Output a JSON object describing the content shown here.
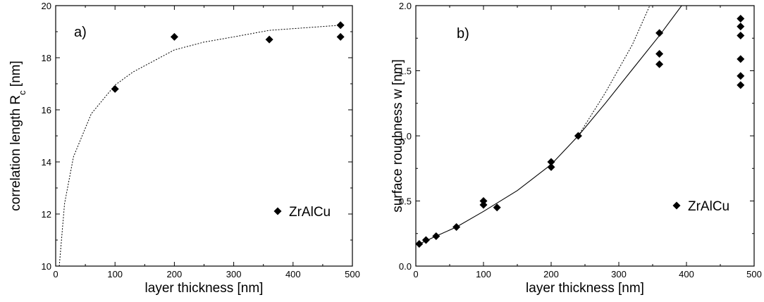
{
  "chart_data": [
    {
      "type": "scatter",
      "panel_label": "a)",
      "xlabel": "layer thickness [nm]",
      "ylabel": {
        "text": "correlation length R",
        "subscript": "c",
        "unit": " [nm]"
      },
      "xlim": [
        0,
        500
      ],
      "ylim": [
        10,
        20
      ],
      "xticks": [
        0,
        100,
        200,
        300,
        400,
        500
      ],
      "yticks": [
        10,
        12,
        14,
        16,
        18,
        20
      ],
      "grid": false,
      "legend": {
        "position": "bottom-right",
        "entries": [
          "ZrAlCu"
        ]
      },
      "series": [
        {
          "name": "ZrAlCu",
          "style": "diamond",
          "points": [
            [
              100,
              16.8
            ],
            [
              200,
              18.8
            ],
            [
              360,
              18.7
            ],
            [
              480,
              19.25
            ],
            [
              480,
              18.8
            ]
          ]
        },
        {
          "style": "dotted-line",
          "points": [
            [
              6,
              10.0
            ],
            [
              15,
              12.4
            ],
            [
              30,
              14.2
            ],
            [
              60,
              15.85
            ],
            [
              100,
              16.95
            ],
            [
              130,
              17.45
            ],
            [
              200,
              18.3
            ],
            [
              250,
              18.6
            ],
            [
              300,
              18.8
            ],
            [
              360,
              19.05
            ],
            [
              420,
              19.15
            ],
            [
              480,
              19.25
            ]
          ]
        }
      ]
    },
    {
      "type": "scatter",
      "panel_label": "b)",
      "xlabel": "layer thickness [nm]",
      "ylabel": {
        "text": "surface roughness w [nm]"
      },
      "xlim": [
        0,
        500
      ],
      "ylim": [
        0.0,
        2.0
      ],
      "xticks": [
        0,
        100,
        200,
        300,
        400,
        500
      ],
      "yticks": [
        0.0,
        0.5,
        1.0,
        1.5,
        2.0
      ],
      "ytick_labels": [
        "0.0",
        "0.5",
        "1.0",
        "1.5",
        "2.0"
      ],
      "grid": false,
      "legend": {
        "position": "bottom-right",
        "entries": [
          "ZrAlCu"
        ]
      },
      "series": [
        {
          "name": "ZrAlCu",
          "style": "diamond",
          "points": [
            [
              5,
              0.17
            ],
            [
              15,
              0.2
            ],
            [
              30,
              0.23
            ],
            [
              60,
              0.3
            ],
            [
              100,
              0.5
            ],
            [
              100,
              0.47
            ],
            [
              120,
              0.45
            ],
            [
              200,
              0.8
            ],
            [
              200,
              0.76
            ],
            [
              240,
              1.0
            ],
            [
              360,
              1.79
            ],
            [
              360,
              1.63
            ],
            [
              360,
              1.55
            ],
            [
              480,
              1.9
            ],
            [
              480,
              1.84
            ],
            [
              480,
              1.77
            ],
            [
              480,
              1.59
            ],
            [
              480,
              1.46
            ],
            [
              480,
              1.39
            ]
          ]
        },
        {
          "style": "solid-line",
          "points": [
            [
              5,
              0.17
            ],
            [
              30,
              0.23
            ],
            [
              60,
              0.3
            ],
            [
              100,
              0.42
            ],
            [
              150,
              0.58
            ],
            [
              200,
              0.78
            ],
            [
              240,
              1.0
            ],
            [
              280,
              1.25
            ],
            [
              320,
              1.51
            ],
            [
              360,
              1.77
            ],
            [
              400,
              2.05
            ]
          ]
        },
        {
          "style": "dotted-line",
          "points": [
            [
              240,
              1.0
            ],
            [
              280,
              1.33
            ],
            [
              320,
              1.7
            ],
            [
              350,
              2.05
            ]
          ]
        }
      ]
    }
  ]
}
